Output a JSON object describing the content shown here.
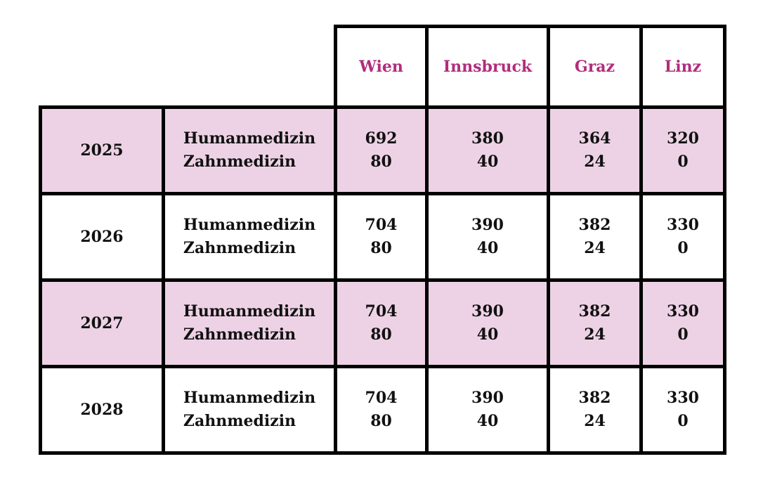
{
  "table": {
    "cities": [
      "Wien",
      "Innsbruck",
      "Graz",
      "Linz"
    ],
    "subjects": [
      "Humanmedizin",
      "Zahnmedizin"
    ],
    "rows": [
      {
        "year": "2025",
        "highlighted": true,
        "values": [
          [
            "692",
            "80"
          ],
          [
            "380",
            "40"
          ],
          [
            "364",
            "24"
          ],
          [
            "320",
            "0"
          ]
        ]
      },
      {
        "year": "2026",
        "highlighted": false,
        "values": [
          [
            "704",
            "80"
          ],
          [
            "390",
            "40"
          ],
          [
            "382",
            "24"
          ],
          [
            "330",
            "0"
          ]
        ]
      },
      {
        "year": "2027",
        "highlighted": true,
        "values": [
          [
            "704",
            "80"
          ],
          [
            "390",
            "40"
          ],
          [
            "382",
            "24"
          ],
          [
            "330",
            "0"
          ]
        ]
      },
      {
        "year": "2028",
        "highlighted": false,
        "values": [
          [
            "704",
            "80"
          ],
          [
            "390",
            "40"
          ],
          [
            "382",
            "24"
          ],
          [
            "330",
            "0"
          ]
        ]
      }
    ],
    "colors": {
      "accent_text": "#b12d7d",
      "highlight_row_bg": "#edd2e5",
      "border": "#000000",
      "body_text": "#111111",
      "background": "#ffffff"
    }
  },
  "chart_data": {
    "type": "table",
    "city_columns": [
      "Wien",
      "Innsbruck",
      "Graz",
      "Linz"
    ],
    "row_groups": [
      {
        "year": "2025",
        "Humanmedizin": [
          692,
          380,
          364,
          320
        ],
        "Zahnmedizin": [
          80,
          40,
          24,
          0
        ]
      },
      {
        "year": "2026",
        "Humanmedizin": [
          704,
          390,
          382,
          330
        ],
        "Zahnmedizin": [
          80,
          40,
          24,
          0
        ]
      },
      {
        "year": "2027",
        "Humanmedizin": [
          704,
          390,
          382,
          330
        ],
        "Zahnmedizin": [
          80,
          40,
          24,
          0
        ]
      },
      {
        "year": "2028",
        "Humanmedizin": [
          704,
          390,
          382,
          330
        ],
        "Zahnmedizin": [
          80,
          40,
          24,
          0
        ]
      }
    ],
    "highlighted_years": [
      "2025",
      "2027"
    ]
  }
}
